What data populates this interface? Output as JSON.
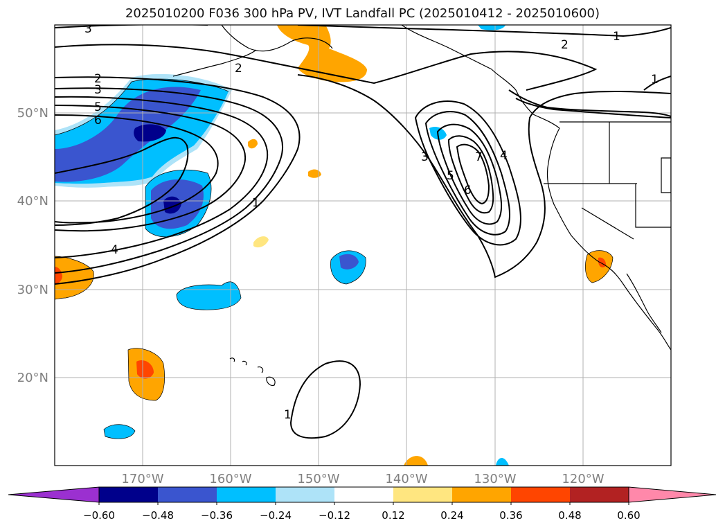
{
  "title": "2025010200 F036 300 hPa PV, IVT Landfall PC (2025010412 - 2025010600)",
  "map": {
    "projection": "PlateCarree",
    "lon_range": [
      -180,
      -110
    ],
    "lat_range": [
      10,
      60
    ],
    "lon_ticks": [
      {
        "value": -170,
        "label": "170°W"
      },
      {
        "value": -160,
        "label": "160°W"
      },
      {
        "value": -150,
        "label": "150°W"
      },
      {
        "value": -140,
        "label": "140°W"
      },
      {
        "value": -130,
        "label": "130°W"
      },
      {
        "value": -120,
        "label": "120°W"
      }
    ],
    "lat_ticks": [
      {
        "value": 20,
        "label": "20°N"
      },
      {
        "value": 30,
        "label": "30°N"
      },
      {
        "value": 40,
        "label": "40°N"
      },
      {
        "value": 50,
        "label": "50°N"
      }
    ],
    "grid": true,
    "contour_labels": [
      "3",
      "2",
      "1",
      "2",
      "3",
      "5",
      "6",
      "4",
      "1",
      "2",
      "3",
      "5",
      "6",
      "7",
      "4",
      "1",
      "1",
      "3"
    ]
  },
  "colorbar": {
    "levels": [
      "−0.60",
      "−0.48",
      "−0.36",
      "−0.24",
      "−0.12",
      "0.12",
      "0.24",
      "0.36",
      "0.48",
      "0.60"
    ],
    "colors": [
      "#9b30d0",
      "#00008b",
      "#3a55cf",
      "#00bfff",
      "#aee3f8",
      "#ffffff",
      "#ffe680",
      "#ffa500",
      "#ff4500",
      "#b22222",
      "#ff88aa"
    ]
  }
}
